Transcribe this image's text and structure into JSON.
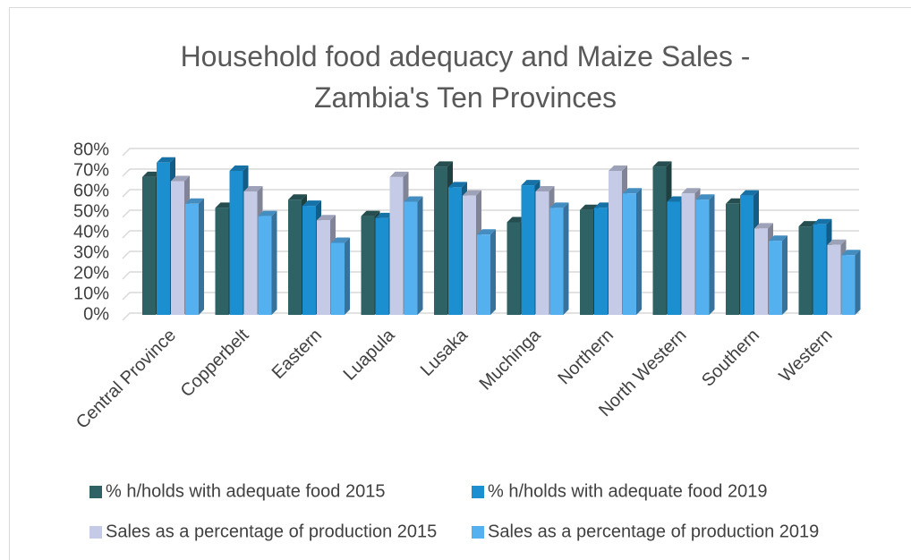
{
  "chart_data": {
    "type": "bar3d",
    "title": "Household food adequacy and Maize Sales - Zambia's Ten Provinces",
    "categories": [
      "Central Province",
      "Copperbelt",
      "Eastern",
      "Luapula",
      "Lusaka",
      "Muchinga",
      "Northern",
      "North Western",
      "Southern",
      "Western"
    ],
    "series": [
      {
        "name": "% h/holds with adequate food 2015",
        "color": "#2f6264",
        "values": [
          67,
          52,
          56,
          48,
          72,
          45,
          51,
          72,
          54,
          43
        ]
      },
      {
        "name": "% h/holds with adequate food 2019",
        "color": "#1b8fcf",
        "values": [
          74,
          70,
          53,
          47,
          62,
          63,
          52,
          55,
          58,
          44
        ]
      },
      {
        "name": "Sales as a percentage of production 2015",
        "color": "#c5cbe6",
        "values": [
          65,
          60,
          46,
          67,
          58,
          60,
          70,
          59,
          42,
          34
        ]
      },
      {
        "name": "Sales as a percentage of production 2019",
        "color": "#55b0f0",
        "values": [
          54,
          48,
          35,
          55,
          39,
          52,
          59,
          56,
          36,
          29
        ]
      }
    ],
    "ylim": [
      0,
      80
    ],
    "yticks": [
      {
        "value": 0,
        "label": "0%"
      },
      {
        "value": 10,
        "label": "10%"
      },
      {
        "value": 20,
        "label": "20%"
      },
      {
        "value": 30,
        "label": "30%"
      },
      {
        "value": 40,
        "label": "40%"
      },
      {
        "value": 50,
        "label": "50%"
      },
      {
        "value": 60,
        "label": "60%"
      },
      {
        "value": 70,
        "label": "70%"
      },
      {
        "value": 80,
        "label": "80%"
      }
    ],
    "grid": true,
    "legend": "bottom"
  }
}
